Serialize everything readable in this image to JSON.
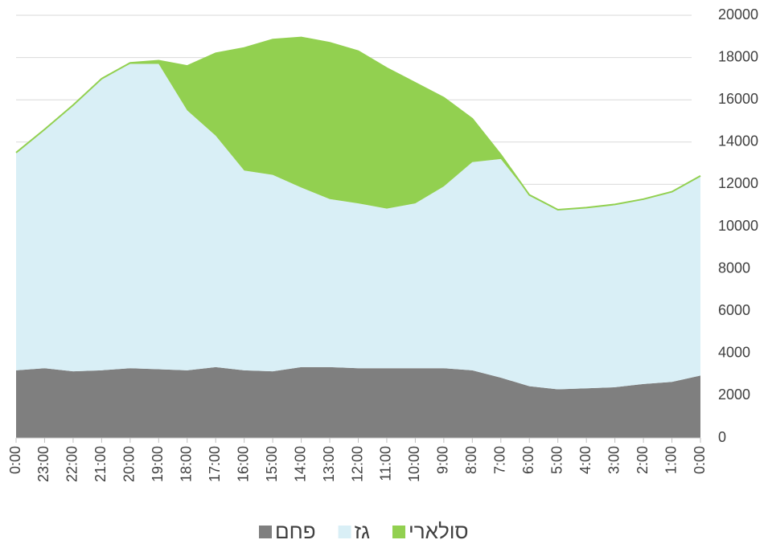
{
  "chart_data": {
    "type": "stacked_area",
    "categories": [
      "0:00",
      "23:00",
      "22:00",
      "21:00",
      "20:00",
      "19:00",
      "18:00",
      "17:00",
      "16:00",
      "15:00",
      "14:00",
      "13:00",
      "12:00",
      "11:00",
      "10:00",
      "9:00",
      "8:00",
      "7:00",
      "6:00",
      "5:00",
      "4:00",
      "3:00",
      "2:00",
      "1:00",
      "0:00"
    ],
    "series": [
      {
        "name": "פחם",
        "color": "#7f7f7f",
        "values": [
          3200,
          3300,
          3150,
          3200,
          3300,
          3250,
          3200,
          3350,
          3200,
          3150,
          3350,
          3350,
          3300,
          3300,
          3300,
          3300,
          3200,
          2850,
          2450,
          2300,
          2350,
          2400,
          2550,
          2650,
          2950
        ]
      },
      {
        "name": "גז",
        "color": "#d9eff6",
        "values": [
          10300,
          11300,
          12600,
          13800,
          14400,
          14450,
          12300,
          10950,
          9450,
          9300,
          8500,
          7950,
          7800,
          7550,
          7800,
          8600,
          9850,
          10350,
          9050,
          8500,
          8550,
          8650,
          8750,
          9000,
          9450
        ]
      },
      {
        "name": "סולארי",
        "color": "#92d050",
        "values": [
          0,
          0,
          0,
          0,
          50,
          150,
          2100,
          3900,
          5800,
          6400,
          7100,
          7400,
          7200,
          6650,
          5700,
          4200,
          2050,
          200,
          0,
          0,
          0,
          0,
          0,
          0,
          0
        ]
      }
    ],
    "ylim": [
      0,
      20000
    ],
    "yticks": [
      0,
      2000,
      4000,
      6000,
      8000,
      10000,
      12000,
      14000,
      16000,
      18000,
      20000
    ],
    "grid": true,
    "legend": "bottom"
  }
}
